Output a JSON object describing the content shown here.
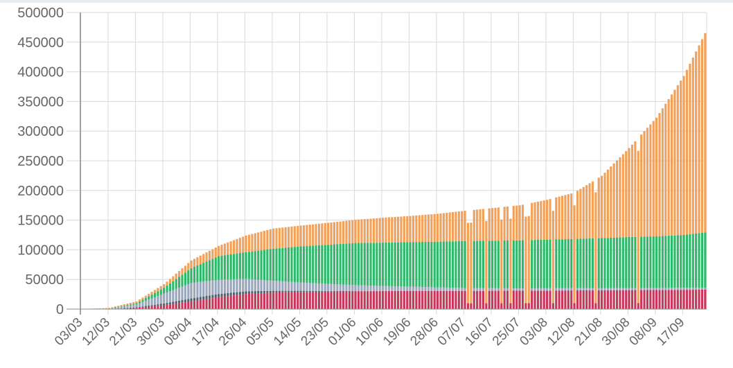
{
  "chart_data": {
    "type": "bar",
    "stacked": true,
    "title": "",
    "xlabel": "",
    "ylabel": "",
    "ylim": [
      0,
      500000
    ],
    "yticks": [
      0,
      50000,
      100000,
      150000,
      200000,
      250000,
      300000,
      350000,
      400000,
      450000,
      500000
    ],
    "xtick_labels": [
      "03/03",
      "12/03",
      "21/03",
      "30/03",
      "08/04",
      "17/04",
      "26/04",
      "05/05",
      "14/05",
      "23/05",
      "01/06",
      "10/06",
      "19/06",
      "28/06",
      "07/07",
      "16/07",
      "25/07",
      "03/08",
      "12/08",
      "21/08",
      "30/08",
      "08/09",
      "17/09"
    ],
    "x_start": "03/03",
    "x_end": "24/09",
    "grid": true,
    "legend": "none",
    "series_colors": {
      "bottom_crimson": "#c8365a",
      "dark_slate": "#55606f",
      "slate": "#9aa7bd",
      "green": "#2eb86a",
      "orange": "#f2a15a"
    },
    "series": [
      {
        "color": "bottom_crimson",
        "x": [
          "03/03",
          "12/03",
          "21/03",
          "30/03",
          "08/04",
          "17/04",
          "26/04",
          "05/05",
          "14/05",
          "23/05",
          "01/06",
          "10/06",
          "19/06",
          "28/06",
          "07/07",
          "16/07",
          "25/07",
          "03/08",
          "12/08",
          "21/08",
          "30/08",
          "08/09",
          "17/09",
          "24/09"
        ],
        "values": [
          0,
          200,
          2000,
          6500,
          13000,
          20000,
          25500,
          27800,
          28800,
          29500,
          30000,
          30300,
          30500,
          30600,
          30700,
          30800,
          31000,
          31200,
          31500,
          31700,
          32000,
          32200,
          32500,
          32800
        ]
      },
      {
        "color": "dark_slate",
        "x": [
          "03/03",
          "12/03",
          "21/03",
          "30/03",
          "08/04",
          "17/04",
          "26/04",
          "05/05",
          "14/05",
          "23/05",
          "01/06",
          "10/06",
          "19/06",
          "28/06",
          "07/07",
          "16/07",
          "25/07",
          "03/08",
          "12/08",
          "21/08",
          "30/08",
          "08/09",
          "17/09",
          "24/09"
        ],
        "values": [
          0,
          100,
          1000,
          3000,
          5000,
          5500,
          4500,
          3000,
          2000,
          1000,
          500,
          200,
          100,
          50,
          0,
          0,
          0,
          0,
          0,
          0,
          0,
          0,
          0,
          0
        ]
      },
      {
        "color": "slate",
        "x": [
          "03/03",
          "12/03",
          "21/03",
          "30/03",
          "08/04",
          "17/04",
          "26/04",
          "05/05",
          "14/05",
          "23/05",
          "01/06",
          "10/06",
          "19/06",
          "28/06",
          "07/07",
          "16/07",
          "25/07",
          "03/08",
          "12/08",
          "21/08",
          "30/08",
          "08/09",
          "17/09",
          "24/09"
        ],
        "values": [
          0,
          400,
          5000,
          16500,
          26000,
          24000,
          21000,
          17000,
          14000,
          12000,
          10000,
          8500,
          7400,
          6000,
          5000,
          4500,
          4000,
          4000,
          3800,
          3500,
          3500,
          3500,
          3500,
          3500
        ]
      },
      {
        "color": "green",
        "x": [
          "03/03",
          "12/03",
          "21/03",
          "30/03",
          "08/04",
          "17/04",
          "26/04",
          "05/05",
          "14/05",
          "23/05",
          "01/06",
          "10/06",
          "19/06",
          "28/06",
          "07/07",
          "16/07",
          "25/07",
          "03/08",
          "12/08",
          "21/08",
          "30/08",
          "08/09",
          "17/09",
          "24/09"
        ],
        "values": [
          0,
          300,
          2000,
          10000,
          25000,
          40000,
          45000,
          54000,
          61000,
          66000,
          71000,
          73000,
          75000,
          77000,
          79000,
          80000,
          81000,
          82000,
          83000,
          84500,
          86000,
          87000,
          89000,
          93000
        ]
      },
      {
        "color": "orange",
        "x": [
          "03/03",
          "12/03",
          "21/03",
          "30/03",
          "08/04",
          "17/04",
          "26/04",
          "05/05",
          "14/05",
          "23/05",
          "01/06",
          "10/06",
          "19/06",
          "28/06",
          "07/07",
          "16/07",
          "25/07",
          "03/08",
          "12/08",
          "21/08",
          "30/08",
          "08/09",
          "17/09",
          "24/09"
        ],
        "values": [
          0,
          1000,
          3000,
          6000,
          13000,
          17000,
          28000,
          34000,
          35000,
          37000,
          39000,
          42000,
          44000,
          47000,
          51000,
          55000,
          59000,
          67000,
          78000,
          105000,
          150000,
          200000,
          268000,
          336000
        ]
      }
    ],
    "missing_report_days": [
      "08/07",
      "09/07",
      "14/07",
      "19/07",
      "22/07",
      "27/07",
      "28/07",
      "05/08",
      "12/08",
      "19/08",
      "02/09"
    ]
  }
}
